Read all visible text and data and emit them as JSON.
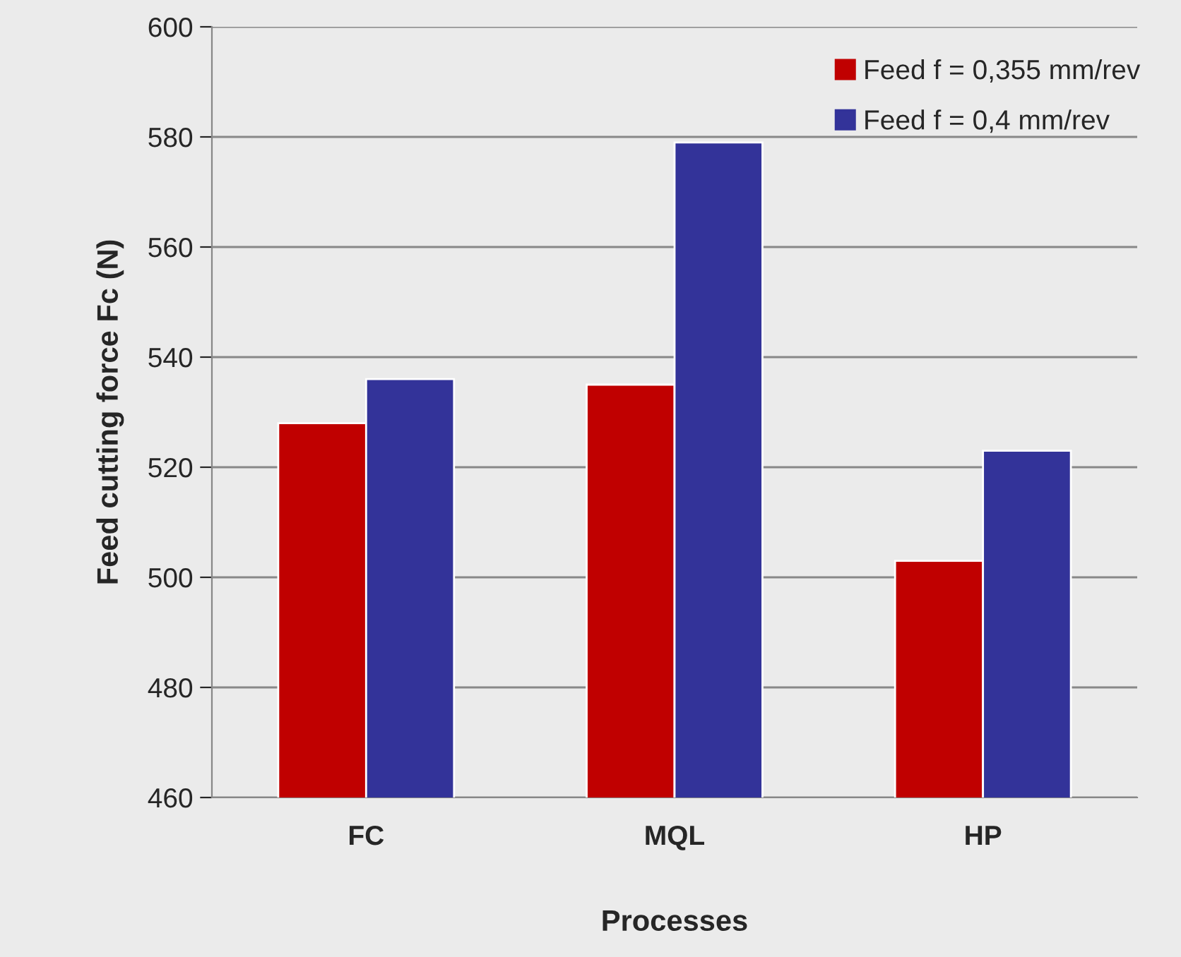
{
  "chart_data": {
    "type": "bar",
    "xlabel": "Processes",
    "ylabel": "Feed cutting force Fc (N)",
    "categories": [
      "FC",
      "MQL",
      "HP"
    ],
    "series": [
      {
        "name": "Feed f = 0,355 mm/rev",
        "color": "#c00000",
        "values": [
          528,
          535,
          503
        ]
      },
      {
        "name": "Feed f = 0,4 mm/rev",
        "color": "#333399",
        "values": [
          536,
          579,
          523
        ]
      }
    ],
    "ylim": [
      460,
      600
    ],
    "yticks": [
      460,
      480,
      500,
      520,
      540,
      560,
      580,
      600
    ],
    "grid": "y",
    "legend": "top right"
  }
}
